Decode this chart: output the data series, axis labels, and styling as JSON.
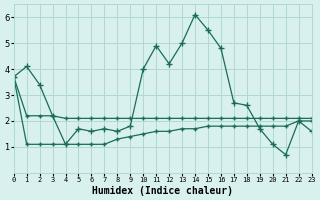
{
  "xlabel": "Humidex (Indice chaleur)",
  "ylabel": "",
  "bg_color": "#d8f0ee",
  "line_color": "#1a6b5a",
  "grid_color": "#b0d8d4",
  "xlim": [
    0,
    23
  ],
  "ylim": [
    0,
    6.5
  ],
  "yticks": [
    1,
    2,
    3,
    4,
    5,
    6
  ],
  "xticks": [
    0,
    1,
    2,
    3,
    4,
    5,
    6,
    7,
    8,
    9,
    10,
    11,
    12,
    13,
    14,
    15,
    16,
    17,
    18,
    19,
    20,
    21,
    22,
    23
  ],
  "series": {
    "main": [
      3.7,
      4.1,
      3.4,
      2.2,
      1.1,
      1.7,
      1.6,
      1.7,
      1.6,
      1.8,
      4.0,
      4.9,
      4.2,
      5.0,
      6.1,
      5.5,
      4.8,
      2.7,
      2.6,
      1.7,
      1.1,
      0.7,
      2.0,
      1.6
    ],
    "upper": [
      3.7,
      2.2,
      2.2,
      2.2,
      2.1,
      2.1,
      2.1,
      2.1,
      2.1,
      2.1,
      2.1,
      2.1,
      2.1,
      2.1,
      2.1,
      2.1,
      2.1,
      2.1,
      2.1,
      2.1,
      2.1,
      2.1,
      2.1,
      2.1
    ],
    "lower": [
      3.7,
      1.1,
      1.1,
      1.1,
      1.1,
      1.1,
      1.1,
      1.1,
      1.3,
      1.4,
      1.5,
      1.6,
      1.6,
      1.7,
      1.7,
      1.8,
      1.8,
      1.8,
      1.8,
      1.8,
      1.8,
      1.8,
      2.0,
      2.0
    ]
  }
}
